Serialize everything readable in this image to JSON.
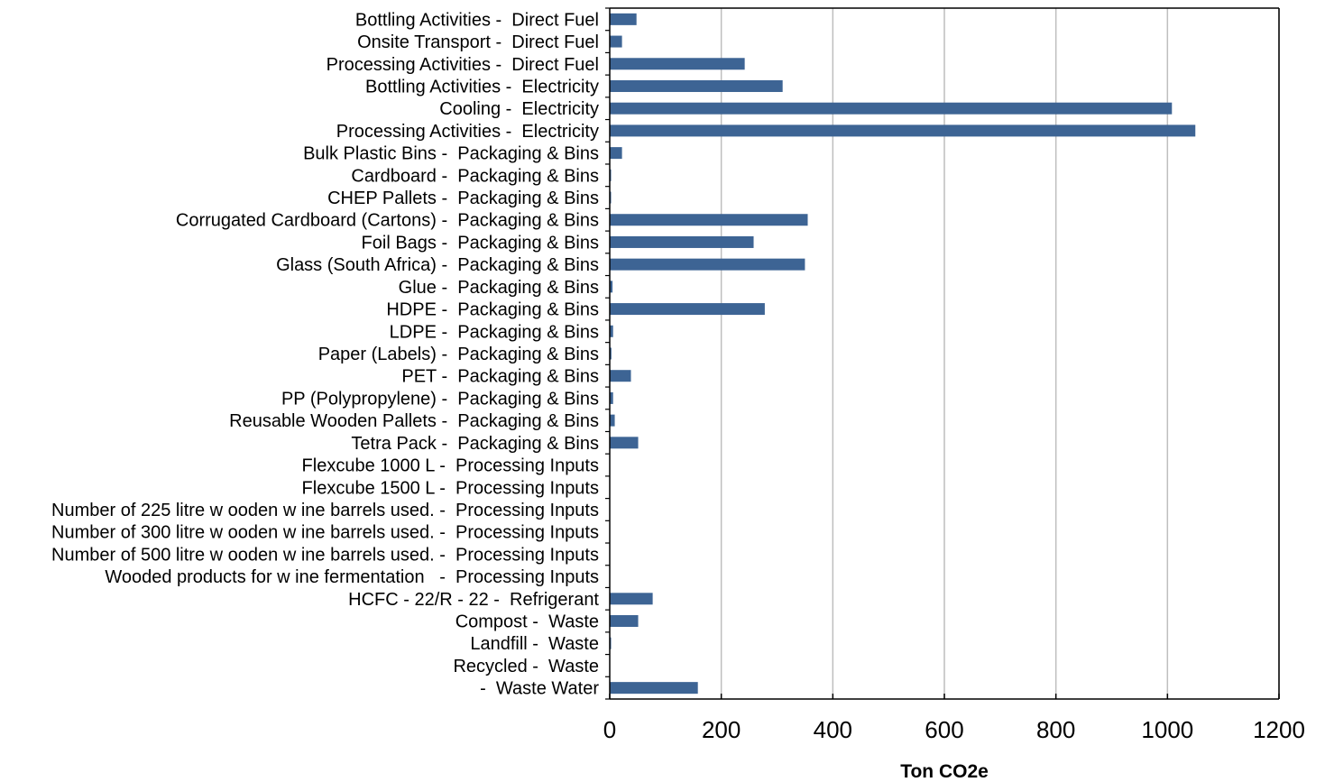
{
  "chart_data": {
    "type": "bar",
    "orientation": "horizontal",
    "title": "",
    "xlabel": "Ton CO2e",
    "ylabel": "",
    "xlim": [
      0,
      1200
    ],
    "xticks": [
      0,
      200,
      400,
      600,
      800,
      1000,
      1200
    ],
    "grid": "vertical",
    "legend": "none",
    "bar_color": "#3D6494",
    "categories": [
      "Bottling Activities -  Direct Fuel",
      "Onsite Transport -  Direct Fuel",
      "Processing Activities -  Direct Fuel",
      "Bottling Activities -  Electricity",
      "Cooling -  Electricity",
      "Processing Activities -  Electricity",
      "Bulk Plastic Bins -  Packaging & Bins",
      "Cardboard -  Packaging & Bins",
      "CHEP Pallets -  Packaging & Bins",
      "Corrugated Cardboard (Cartons) -  Packaging & Bins",
      "Foil Bags -  Packaging & Bins",
      "Glass (South Africa) -  Packaging & Bins",
      "Glue -  Packaging & Bins",
      "HDPE -  Packaging & Bins",
      "LDPE -  Packaging & Bins",
      "Paper (Labels) -  Packaging & Bins",
      "PET -  Packaging & Bins",
      "PP (Polypropylene) -  Packaging & Bins",
      "Reusable Wooden Pallets -  Packaging & Bins",
      "Tetra Pack -  Packaging & Bins",
      "Flexcube 1000 L -  Processing Inputs",
      "Flexcube 1500 L -  Processing Inputs",
      "Number of 225 litre w ooden w ine barrels used. -  Processing Inputs",
      "Number of 300 litre w ooden w ine barrels used. -  Processing Inputs",
      "Number of 500 litre w ooden w ine barrels used. -  Processing Inputs",
      "Wooded products for w ine fermentation   -  Processing Inputs",
      "HCFC - 22/R - 22 -  Refrigerant",
      "Compost -  Waste",
      "Landfill -  Waste",
      "Recycled -  Waste",
      " -  Waste Water"
    ],
    "values": [
      48,
      22,
      242,
      310,
      1008,
      1050,
      22,
      2,
      1,
      355,
      258,
      350,
      5,
      278,
      6,
      3,
      38,
      6,
      9,
      51,
      0,
      0,
      0,
      0,
      0,
      0,
      77,
      51,
      2,
      0,
      158
    ]
  }
}
